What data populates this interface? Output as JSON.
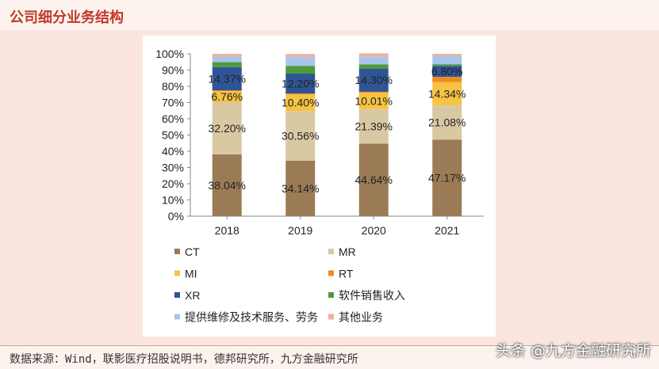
{
  "header": {
    "title": "公司细分业务结构"
  },
  "footer": {
    "source": "数据来源：Wind，联影医疗招股说明书，德邦研究所，九方金融研究所",
    "watermark": "头条 @九方金融研究所"
  },
  "colors": {
    "background": "#fbe6df",
    "title": "#c0392b"
  },
  "chart_data": {
    "type": "bar",
    "stacked": true,
    "categories": [
      "2018",
      "2019",
      "2020",
      "2021"
    ],
    "ylim": [
      0,
      100
    ],
    "yticks": [
      "0%",
      "10%",
      "20%",
      "30%",
      "40%",
      "50%",
      "60%",
      "70%",
      "80%",
      "90%",
      "100%"
    ],
    "grid": false,
    "legend_position": "bottom",
    "series": [
      {
        "name": "CT",
        "color": "#9b7b55",
        "values": [
          38.04,
          34.14,
          44.64,
          47.17
        ],
        "labels": [
          "38.04%",
          "34.14%",
          "44.64%",
          "47.17%"
        ]
      },
      {
        "name": "MR",
        "color": "#d9c9a3",
        "values": [
          32.2,
          30.56,
          21.39,
          21.08
        ],
        "labels": [
          "32.20%",
          "30.56%",
          "21.39%",
          "21.08%"
        ]
      },
      {
        "name": "MI",
        "color": "#f6c342",
        "values": [
          6.76,
          10.4,
          10.01,
          14.34
        ],
        "labels": [
          "6.76%",
          "10.40%",
          "10.01%",
          "14.34%"
        ]
      },
      {
        "name": "RT",
        "color": "#f08c1a",
        "values": [
          0.5,
          0.5,
          0.6,
          3.2
        ],
        "labels": [
          "",
          "",
          "",
          ""
        ]
      },
      {
        "name": "XR",
        "color": "#2f5597",
        "values": [
          14.37,
          12.2,
          14.3,
          6.8
        ],
        "labels": [
          "14.37%",
          "12.20%",
          "14.30%",
          "6.80%"
        ]
      },
      {
        "name": "软件销售收入",
        "color": "#4f9a3c",
        "values": [
          3.0,
          4.8,
          2.6,
          1.0
        ],
        "labels": [
          "",
          "",
          "",
          ""
        ]
      },
      {
        "name": "提供维修及技术服务、劳务",
        "color": "#a9c6ea",
        "values": [
          3.5,
          5.6,
          4.9,
          5.2
        ],
        "labels": [
          "",
          "",
          "",
          ""
        ]
      },
      {
        "name": "其他业务",
        "color": "#f1b09a",
        "values": [
          1.63,
          1.74,
          1.86,
          1.21
        ],
        "labels": [
          "",
          "",
          "",
          ""
        ]
      }
    ]
  }
}
